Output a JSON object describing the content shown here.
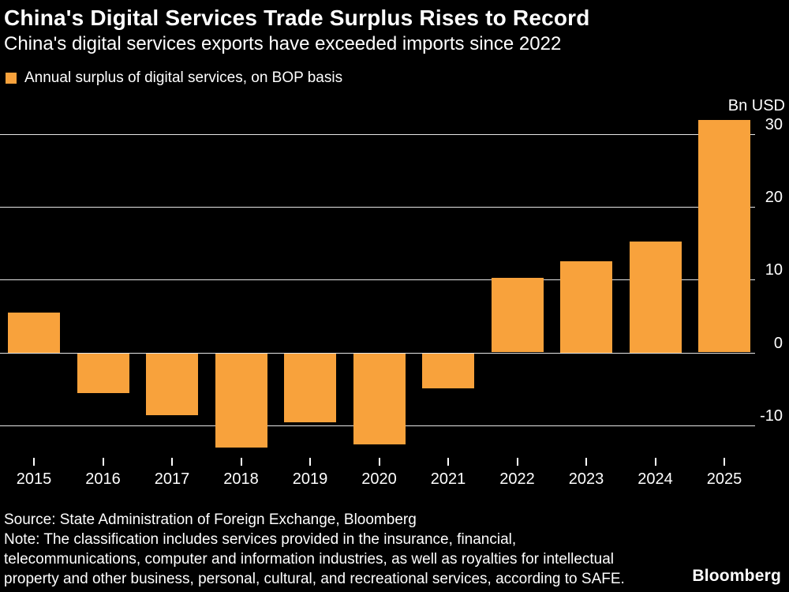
{
  "header": {
    "title": "China's Digital Services Trade Surplus Rises to Record",
    "subtitle": "China's digital services exports have exceeded imports since 2022"
  },
  "legend": {
    "label": "Annual surplus of digital services, on BOP basis",
    "swatch_color": "#F8A23C"
  },
  "chart_data": {
    "type": "bar",
    "title": "China's Digital Services Trade Surplus Rises to Record",
    "subtitle": "China's digital services exports have exceeded imports since 2022",
    "series_name": "Annual surplus of digital services, on BOP basis",
    "categories": [
      "2015",
      "2016",
      "2017",
      "2018",
      "2019",
      "2020",
      "2021",
      "2022",
      "2023",
      "2024",
      "2025"
    ],
    "values": [
      5.5,
      -5.5,
      -8.5,
      -13,
      -9.5,
      -12.5,
      -4.8,
      10.3,
      12.5,
      15.3,
      32
    ],
    "unit_label": "Bn USD",
    "ylabel": "Bn USD",
    "xlabel": "",
    "yticks": [
      30,
      20,
      10,
      0,
      -10
    ],
    "ylim": [
      -16,
      35
    ],
    "bar_color": "#F8A23C",
    "background_color": "#000000",
    "grid": true,
    "axis_side": "right",
    "legend_position": "top-left"
  },
  "footer": {
    "source": "Source: State Administration of Foreign Exchange, Bloomberg",
    "note_lines": [
      "Note: The classification includes services provided in the insurance, financial,",
      "telecommunications, computer and information industries, as well as royalties for intellectual",
      "property and other business, personal, cultural, and recreational services, according to SAFE."
    ],
    "brand": "Bloomberg"
  }
}
